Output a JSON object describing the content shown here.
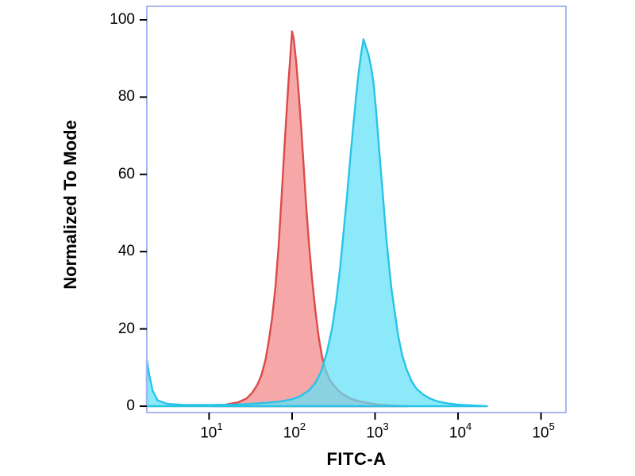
{
  "chart_data": {
    "type": "area",
    "title": "",
    "subtitle": "",
    "xlabel": "FITC-A",
    "ylabel": "Normalized To Mode",
    "x_scale": "log10",
    "x_range_log": [
      0.25,
      5.3
    ],
    "ylim": [
      0,
      100
    ],
    "grid": false,
    "legend": "none",
    "frame_color": "#a7b6f2",
    "tick_color": "#000000",
    "x_ticks": [
      {
        "base": "10",
        "exp": "1",
        "log": 1
      },
      {
        "base": "10",
        "exp": "2",
        "log": 2
      },
      {
        "base": "10",
        "exp": "3",
        "log": 3
      },
      {
        "base": "10",
        "exp": "4",
        "log": 4
      },
      {
        "base": "10",
        "exp": "5",
        "log": 5
      }
    ],
    "y_ticks": [
      0,
      20,
      40,
      60,
      80,
      100
    ],
    "series": [
      {
        "name": "red-series",
        "description": "red histogram peak centered near 1e2",
        "peak_x_log": 2.0,
        "peak_y": 97,
        "fill": "rgba(240,110,110,0.60)",
        "stroke": "#dc4a4a",
        "points": [
          [
            1.05,
            0
          ],
          [
            1.2,
            0.4
          ],
          [
            1.35,
            1
          ],
          [
            1.45,
            2
          ],
          [
            1.52,
            3.5
          ],
          [
            1.58,
            5.5
          ],
          [
            1.63,
            8
          ],
          [
            1.68,
            12
          ],
          [
            1.72,
            17
          ],
          [
            1.76,
            23
          ],
          [
            1.8,
            31
          ],
          [
            1.84,
            42
          ],
          [
            1.87,
            53
          ],
          [
            1.9,
            64
          ],
          [
            1.93,
            75
          ],
          [
            1.96,
            85
          ],
          [
            1.98,
            91
          ],
          [
            2.0,
            97
          ],
          [
            2.02,
            95
          ],
          [
            2.05,
            89
          ],
          [
            2.08,
            81
          ],
          [
            2.11,
            72
          ],
          [
            2.14,
            62
          ],
          [
            2.17,
            52
          ],
          [
            2.2,
            43
          ],
          [
            2.24,
            33
          ],
          [
            2.28,
            25
          ],
          [
            2.32,
            18
          ],
          [
            2.36,
            13
          ],
          [
            2.4,
            9.5
          ],
          [
            2.45,
            7
          ],
          [
            2.5,
            5.5
          ],
          [
            2.56,
            4
          ],
          [
            2.62,
            3
          ],
          [
            2.7,
            2
          ],
          [
            2.8,
            1.3
          ],
          [
            2.92,
            0.8
          ],
          [
            3.05,
            0.4
          ],
          [
            3.2,
            0.2
          ],
          [
            3.4,
            0
          ]
        ]
      },
      {
        "name": "cyan-series",
        "description": "cyan histogram peak centered near 1e3 with small spike at left plot edge",
        "peak_x_log": 2.86,
        "peak_y": 95,
        "fill": "rgba(95,225,248,0.72)",
        "stroke": "#27c4e8",
        "points": [
          [
            0.25,
            12
          ],
          [
            0.28,
            8
          ],
          [
            0.32,
            4
          ],
          [
            0.38,
            1.5
          ],
          [
            0.5,
            0.6
          ],
          [
            0.7,
            0.3
          ],
          [
            1.0,
            0.3
          ],
          [
            1.3,
            0.4
          ],
          [
            1.5,
            0.6
          ],
          [
            1.7,
            0.9
          ],
          [
            1.85,
            1.2
          ],
          [
            2.0,
            1.8
          ],
          [
            2.1,
            2.6
          ],
          [
            2.2,
            4
          ],
          [
            2.28,
            6
          ],
          [
            2.35,
            9
          ],
          [
            2.42,
            14
          ],
          [
            2.48,
            20
          ],
          [
            2.53,
            27
          ],
          [
            2.58,
            36
          ],
          [
            2.62,
            45
          ],
          [
            2.66,
            54
          ],
          [
            2.7,
            64
          ],
          [
            2.74,
            73
          ],
          [
            2.77,
            80
          ],
          [
            2.8,
            86
          ],
          [
            2.83,
            91
          ],
          [
            2.86,
            95
          ],
          [
            2.89,
            93
          ],
          [
            2.92,
            91
          ],
          [
            2.95,
            88
          ],
          [
            2.98,
            84
          ],
          [
            3.01,
            77
          ],
          [
            3.04,
            69
          ],
          [
            3.07,
            61
          ],
          [
            3.1,
            53
          ],
          [
            3.13,
            45
          ],
          [
            3.16,
            38
          ],
          [
            3.2,
            30
          ],
          [
            3.24,
            24
          ],
          [
            3.28,
            18
          ],
          [
            3.33,
            13
          ],
          [
            3.38,
            9.5
          ],
          [
            3.44,
            6.5
          ],
          [
            3.5,
            4.5
          ],
          [
            3.58,
            3
          ],
          [
            3.66,
            2
          ],
          [
            3.76,
            1.2
          ],
          [
            3.88,
            0.7
          ],
          [
            4.0,
            0.4
          ],
          [
            4.15,
            0.2
          ],
          [
            4.35,
            0
          ]
        ]
      }
    ]
  }
}
